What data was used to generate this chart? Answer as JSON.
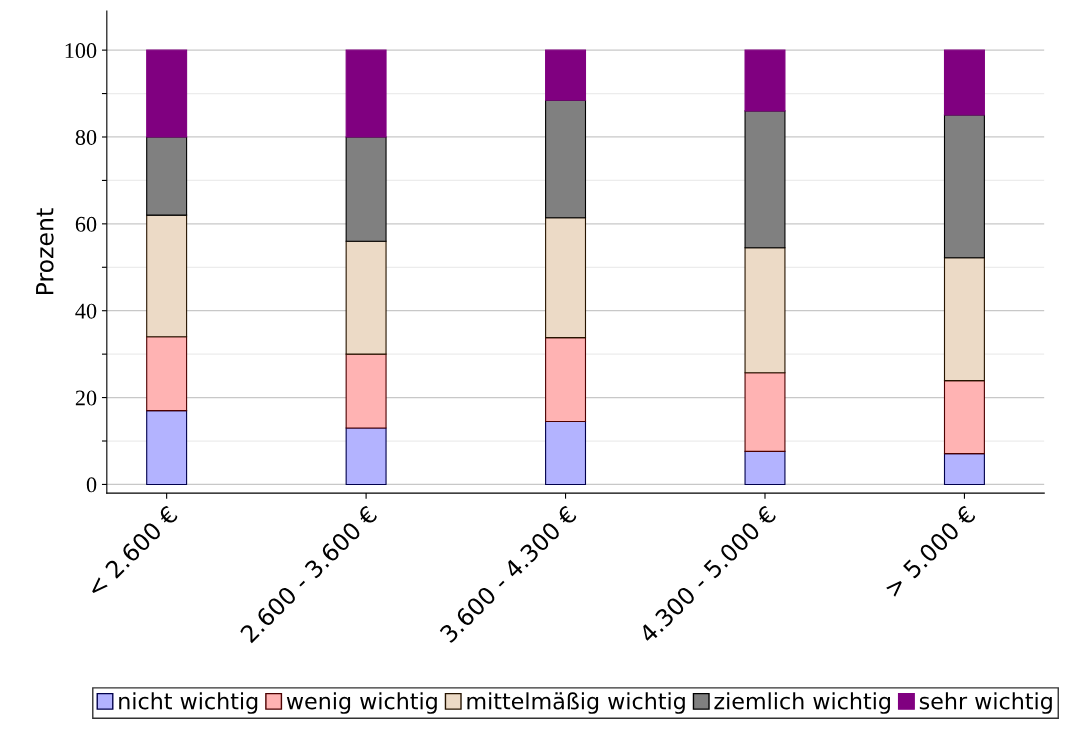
{
  "chart_data": {
    "type": "bar",
    "stacked": true,
    "ylabel": "Prozent",
    "categories": [
      "< 2.600 €",
      "2.600 - 3.600 €",
      "3.600 - 4.300 €",
      "4.300 - 5.000 €",
      "> 5.000 €"
    ],
    "series": [
      {
        "name": "nicht wichtig",
        "color": "#b3b3ff",
        "values": [
          17,
          13,
          14.5,
          7.6,
          7.1
        ]
      },
      {
        "name": "wenig wichtig",
        "color": "#ffb3b3",
        "values": [
          17,
          17,
          19.3,
          18.1,
          16.8
        ]
      },
      {
        "name": "mittelmäßig wichtig",
        "color": "#ecdac6",
        "values": [
          28,
          26,
          27.6,
          28.8,
          28.3
        ]
      },
      {
        "name": "ziemlich wichtig",
        "color": "#808080",
        "values": [
          18,
          24,
          27.1,
          31.5,
          32.9
        ]
      },
      {
        "name": "sehr wichtig",
        "color": "#800080",
        "values": [
          20,
          20,
          11.5,
          14,
          14.9
        ]
      }
    ],
    "ylim": [
      -2,
      109
    ],
    "yticks": [
      0,
      {
        "value": 10,
        "label": null
      },
      20,
      {
        "value": 30,
        "label": null
      },
      40,
      {
        "value": 50,
        "label": null
      },
      60,
      {
        "value": 70,
        "label": null
      },
      80,
      {
        "value": 90,
        "label": null
      },
      100
    ],
    "grid": "y",
    "legend": "bottom"
  }
}
